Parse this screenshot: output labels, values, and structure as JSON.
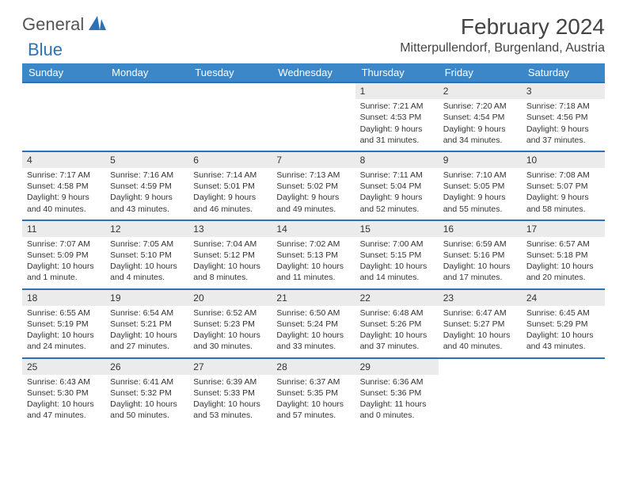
{
  "logo": {
    "text1": "General",
    "text2": "Blue"
  },
  "title": "February 2024",
  "location": "Mitterpullendorf, Burgenland, Austria",
  "colors": {
    "header_bg": "#3b87c8",
    "week_border": "#2d72b8",
    "daynum_bg": "#ebebeb",
    "text": "#333333",
    "title_text": "#444444"
  },
  "dayHeaders": [
    "Sunday",
    "Monday",
    "Tuesday",
    "Wednesday",
    "Thursday",
    "Friday",
    "Saturday"
  ],
  "weeks": [
    [
      {
        "blank": true
      },
      {
        "blank": true
      },
      {
        "blank": true
      },
      {
        "blank": true
      },
      {
        "num": "1",
        "sunrise": "Sunrise: 7:21 AM",
        "sunset": "Sunset: 4:53 PM",
        "daylight": "Daylight: 9 hours and 31 minutes."
      },
      {
        "num": "2",
        "sunrise": "Sunrise: 7:20 AM",
        "sunset": "Sunset: 4:54 PM",
        "daylight": "Daylight: 9 hours and 34 minutes."
      },
      {
        "num": "3",
        "sunrise": "Sunrise: 7:18 AM",
        "sunset": "Sunset: 4:56 PM",
        "daylight": "Daylight: 9 hours and 37 minutes."
      }
    ],
    [
      {
        "num": "4",
        "sunrise": "Sunrise: 7:17 AM",
        "sunset": "Sunset: 4:58 PM",
        "daylight": "Daylight: 9 hours and 40 minutes."
      },
      {
        "num": "5",
        "sunrise": "Sunrise: 7:16 AM",
        "sunset": "Sunset: 4:59 PM",
        "daylight": "Daylight: 9 hours and 43 minutes."
      },
      {
        "num": "6",
        "sunrise": "Sunrise: 7:14 AM",
        "sunset": "Sunset: 5:01 PM",
        "daylight": "Daylight: 9 hours and 46 minutes."
      },
      {
        "num": "7",
        "sunrise": "Sunrise: 7:13 AM",
        "sunset": "Sunset: 5:02 PM",
        "daylight": "Daylight: 9 hours and 49 minutes."
      },
      {
        "num": "8",
        "sunrise": "Sunrise: 7:11 AM",
        "sunset": "Sunset: 5:04 PM",
        "daylight": "Daylight: 9 hours and 52 minutes."
      },
      {
        "num": "9",
        "sunrise": "Sunrise: 7:10 AM",
        "sunset": "Sunset: 5:05 PM",
        "daylight": "Daylight: 9 hours and 55 minutes."
      },
      {
        "num": "10",
        "sunrise": "Sunrise: 7:08 AM",
        "sunset": "Sunset: 5:07 PM",
        "daylight": "Daylight: 9 hours and 58 minutes."
      }
    ],
    [
      {
        "num": "11",
        "sunrise": "Sunrise: 7:07 AM",
        "sunset": "Sunset: 5:09 PM",
        "daylight": "Daylight: 10 hours and 1 minute."
      },
      {
        "num": "12",
        "sunrise": "Sunrise: 7:05 AM",
        "sunset": "Sunset: 5:10 PM",
        "daylight": "Daylight: 10 hours and 4 minutes."
      },
      {
        "num": "13",
        "sunrise": "Sunrise: 7:04 AM",
        "sunset": "Sunset: 5:12 PM",
        "daylight": "Daylight: 10 hours and 8 minutes."
      },
      {
        "num": "14",
        "sunrise": "Sunrise: 7:02 AM",
        "sunset": "Sunset: 5:13 PM",
        "daylight": "Daylight: 10 hours and 11 minutes."
      },
      {
        "num": "15",
        "sunrise": "Sunrise: 7:00 AM",
        "sunset": "Sunset: 5:15 PM",
        "daylight": "Daylight: 10 hours and 14 minutes."
      },
      {
        "num": "16",
        "sunrise": "Sunrise: 6:59 AM",
        "sunset": "Sunset: 5:16 PM",
        "daylight": "Daylight: 10 hours and 17 minutes."
      },
      {
        "num": "17",
        "sunrise": "Sunrise: 6:57 AM",
        "sunset": "Sunset: 5:18 PM",
        "daylight": "Daylight: 10 hours and 20 minutes."
      }
    ],
    [
      {
        "num": "18",
        "sunrise": "Sunrise: 6:55 AM",
        "sunset": "Sunset: 5:19 PM",
        "daylight": "Daylight: 10 hours and 24 minutes."
      },
      {
        "num": "19",
        "sunrise": "Sunrise: 6:54 AM",
        "sunset": "Sunset: 5:21 PM",
        "daylight": "Daylight: 10 hours and 27 minutes."
      },
      {
        "num": "20",
        "sunrise": "Sunrise: 6:52 AM",
        "sunset": "Sunset: 5:23 PM",
        "daylight": "Daylight: 10 hours and 30 minutes."
      },
      {
        "num": "21",
        "sunrise": "Sunrise: 6:50 AM",
        "sunset": "Sunset: 5:24 PM",
        "daylight": "Daylight: 10 hours and 33 minutes."
      },
      {
        "num": "22",
        "sunrise": "Sunrise: 6:48 AM",
        "sunset": "Sunset: 5:26 PM",
        "daylight": "Daylight: 10 hours and 37 minutes."
      },
      {
        "num": "23",
        "sunrise": "Sunrise: 6:47 AM",
        "sunset": "Sunset: 5:27 PM",
        "daylight": "Daylight: 10 hours and 40 minutes."
      },
      {
        "num": "24",
        "sunrise": "Sunrise: 6:45 AM",
        "sunset": "Sunset: 5:29 PM",
        "daylight": "Daylight: 10 hours and 43 minutes."
      }
    ],
    [
      {
        "num": "25",
        "sunrise": "Sunrise: 6:43 AM",
        "sunset": "Sunset: 5:30 PM",
        "daylight": "Daylight: 10 hours and 47 minutes."
      },
      {
        "num": "26",
        "sunrise": "Sunrise: 6:41 AM",
        "sunset": "Sunset: 5:32 PM",
        "daylight": "Daylight: 10 hours and 50 minutes."
      },
      {
        "num": "27",
        "sunrise": "Sunrise: 6:39 AM",
        "sunset": "Sunset: 5:33 PM",
        "daylight": "Daylight: 10 hours and 53 minutes."
      },
      {
        "num": "28",
        "sunrise": "Sunrise: 6:37 AM",
        "sunset": "Sunset: 5:35 PM",
        "daylight": "Daylight: 10 hours and 57 minutes."
      },
      {
        "num": "29",
        "sunrise": "Sunrise: 6:36 AM",
        "sunset": "Sunset: 5:36 PM",
        "daylight": "Daylight: 11 hours and 0 minutes."
      },
      {
        "blank": true
      },
      {
        "blank": true
      }
    ]
  ]
}
